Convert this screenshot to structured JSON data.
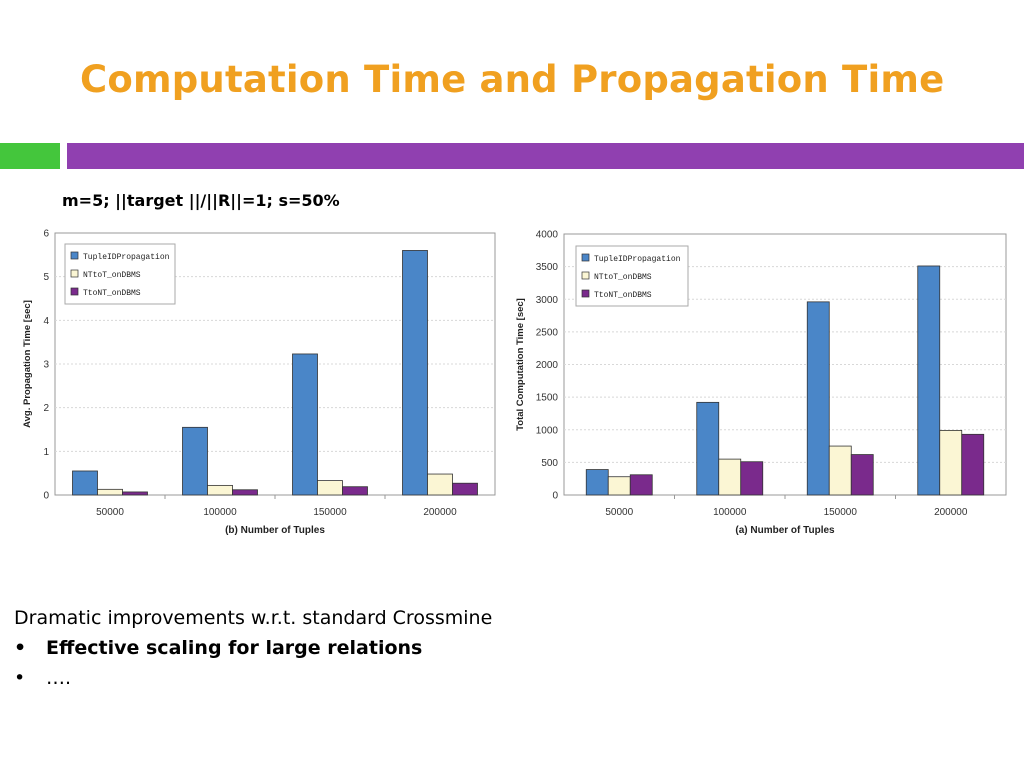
{
  "slide": {
    "title": "Computation Time and Propagation Time",
    "accent_colors": {
      "title": "#f0a020",
      "left_bar": "#44c63c",
      "right_bar": "#9040b0"
    },
    "params": "m=5;  ||target ||/||R||=1; s=50%",
    "intro": "Dramatic improvements w.r.t. standard Crossmine",
    "bullets": [
      {
        "marker": "•",
        "text": "Effective scaling for large relations",
        "bold": true
      },
      {
        "marker": "•",
        "text": "….",
        "bold": false
      }
    ]
  },
  "chart_data": [
    {
      "type": "bar",
      "categories": [
        "50000",
        "100000",
        "150000",
        "200000"
      ],
      "series": [
        {
          "name": "TupleIDPropagation",
          "color": "#4a86c8",
          "values": [
            0.55,
            1.55,
            3.23,
            5.6
          ]
        },
        {
          "name": "NTtoT_onDBMS",
          "color": "#fbf6d4",
          "values": [
            0.13,
            0.22,
            0.33,
            0.48
          ]
        },
        {
          "name": "TtoNT_onDBMS",
          "color": "#7a2a8c",
          "values": [
            0.07,
            0.12,
            0.19,
            0.27
          ]
        }
      ],
      "xlabel": "(b) Number of Tuples",
      "ylabel": "Avg. Propagation Time [sec]",
      "ylim": [
        0,
        6
      ],
      "yticks": [
        "0",
        "1",
        "2",
        "3",
        "4",
        "5",
        "6"
      ],
      "grid": true,
      "legend_position": "top-left"
    },
    {
      "type": "bar",
      "categories": [
        "50000",
        "100000",
        "150000",
        "200000"
      ],
      "series": [
        {
          "name": "TupleIDPropagation",
          "color": "#4a86c8",
          "values": [
            390,
            1420,
            2960,
            3510
          ]
        },
        {
          "name": "NTtoT_onDBMS",
          "color": "#fbf6d4",
          "values": [
            280,
            550,
            750,
            990
          ]
        },
        {
          "name": "TtoNT_onDBMS",
          "color": "#7a2a8c",
          "values": [
            310,
            510,
            620,
            930
          ]
        }
      ],
      "xlabel": "(a) Number of Tuples",
      "ylabel": "Total Computation Time [sec]",
      "ylim": [
        0,
        4000
      ],
      "yticks": [
        "0",
        "500",
        "1000",
        "1500",
        "2000",
        "2500",
        "3000",
        "3500",
        "4000"
      ],
      "grid": true,
      "legend_position": "top-left"
    }
  ]
}
